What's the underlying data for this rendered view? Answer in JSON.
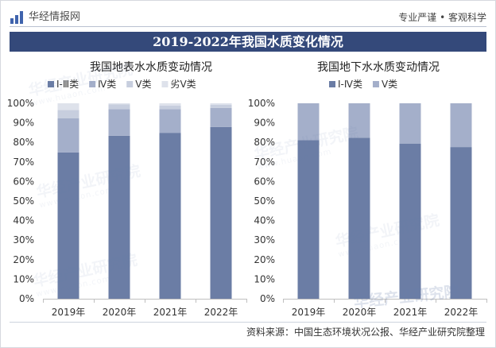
{
  "header": {
    "logo_icon": "bar-chart-icon",
    "brand": "华经情报网",
    "slogan": "专业严谨 • 客观科学"
  },
  "banner": {
    "title": "2019-2022年我国水质变化情况"
  },
  "colors": {
    "banner_bg": "#34497a",
    "logo": "#3f63ad",
    "axis": "#bfbfbf",
    "watermark": "#6a80ad"
  },
  "chart_data": [
    {
      "type": "bar",
      "stacked": true,
      "title": "我国地表水水质变动情况",
      "categories": [
        "2019年",
        "2020年",
        "2021年",
        "2022年"
      ],
      "series": [
        {
          "name": "Ⅰ-Ⅲ类",
          "values": [
            74.9,
            83.4,
            84.9,
            87.9
          ],
          "color": "#6b7da5"
        },
        {
          "name": "Ⅳ类",
          "values": [
            17.5,
            13.6,
            12.1,
            9.7
          ],
          "color": "#a4afca"
        },
        {
          "name": "Ⅴ类",
          "values": [
            4.2,
            2.4,
            1.8,
            1.7
          ],
          "color": "#c7cede"
        },
        {
          "name": "劣Ⅴ类",
          "values": [
            3.4,
            0.6,
            1.2,
            0.7
          ],
          "color": "#dee2eb"
        }
      ],
      "ylim": [
        0,
        100
      ],
      "yticks": [
        0,
        10,
        20,
        30,
        40,
        50,
        60,
        70,
        80,
        90,
        100
      ],
      "ytick_labels": [
        "0%",
        "10%",
        "20%",
        "30%",
        "40%",
        "50%",
        "60%",
        "70%",
        "80%",
        "90%",
        "100%"
      ],
      "grid": false,
      "legend": "top"
    },
    {
      "type": "bar",
      "stacked": true,
      "title": "我国地下水水质变动情况",
      "categories": [
        "2019年",
        "2020年",
        "2021年",
        "2022年"
      ],
      "series": [
        {
          "name": "Ⅰ-Ⅳ类",
          "values": [
            81.2,
            82.4,
            79.4,
            77.6
          ],
          "color": "#6b7da5"
        },
        {
          "name": "Ⅴ类",
          "values": [
            18.8,
            17.6,
            20.6,
            22.4
          ],
          "color": "#a4afca"
        }
      ],
      "ylim": [
        0,
        100
      ],
      "yticks": [
        0,
        10,
        20,
        30,
        40,
        50,
        60,
        70,
        80,
        90,
        100
      ],
      "ytick_labels": [
        "0%",
        "10%",
        "20%",
        "30%",
        "40%",
        "50%",
        "60%",
        "70%",
        "80%",
        "90%",
        "100%"
      ],
      "grid": false,
      "legend": "top"
    }
  ],
  "footer": {
    "source": "资料来源：中国生态环境状况公报、华经产业研究院整理"
  },
  "watermark": {
    "name": "华经产业研究院",
    "url": "www.huaon.com"
  }
}
